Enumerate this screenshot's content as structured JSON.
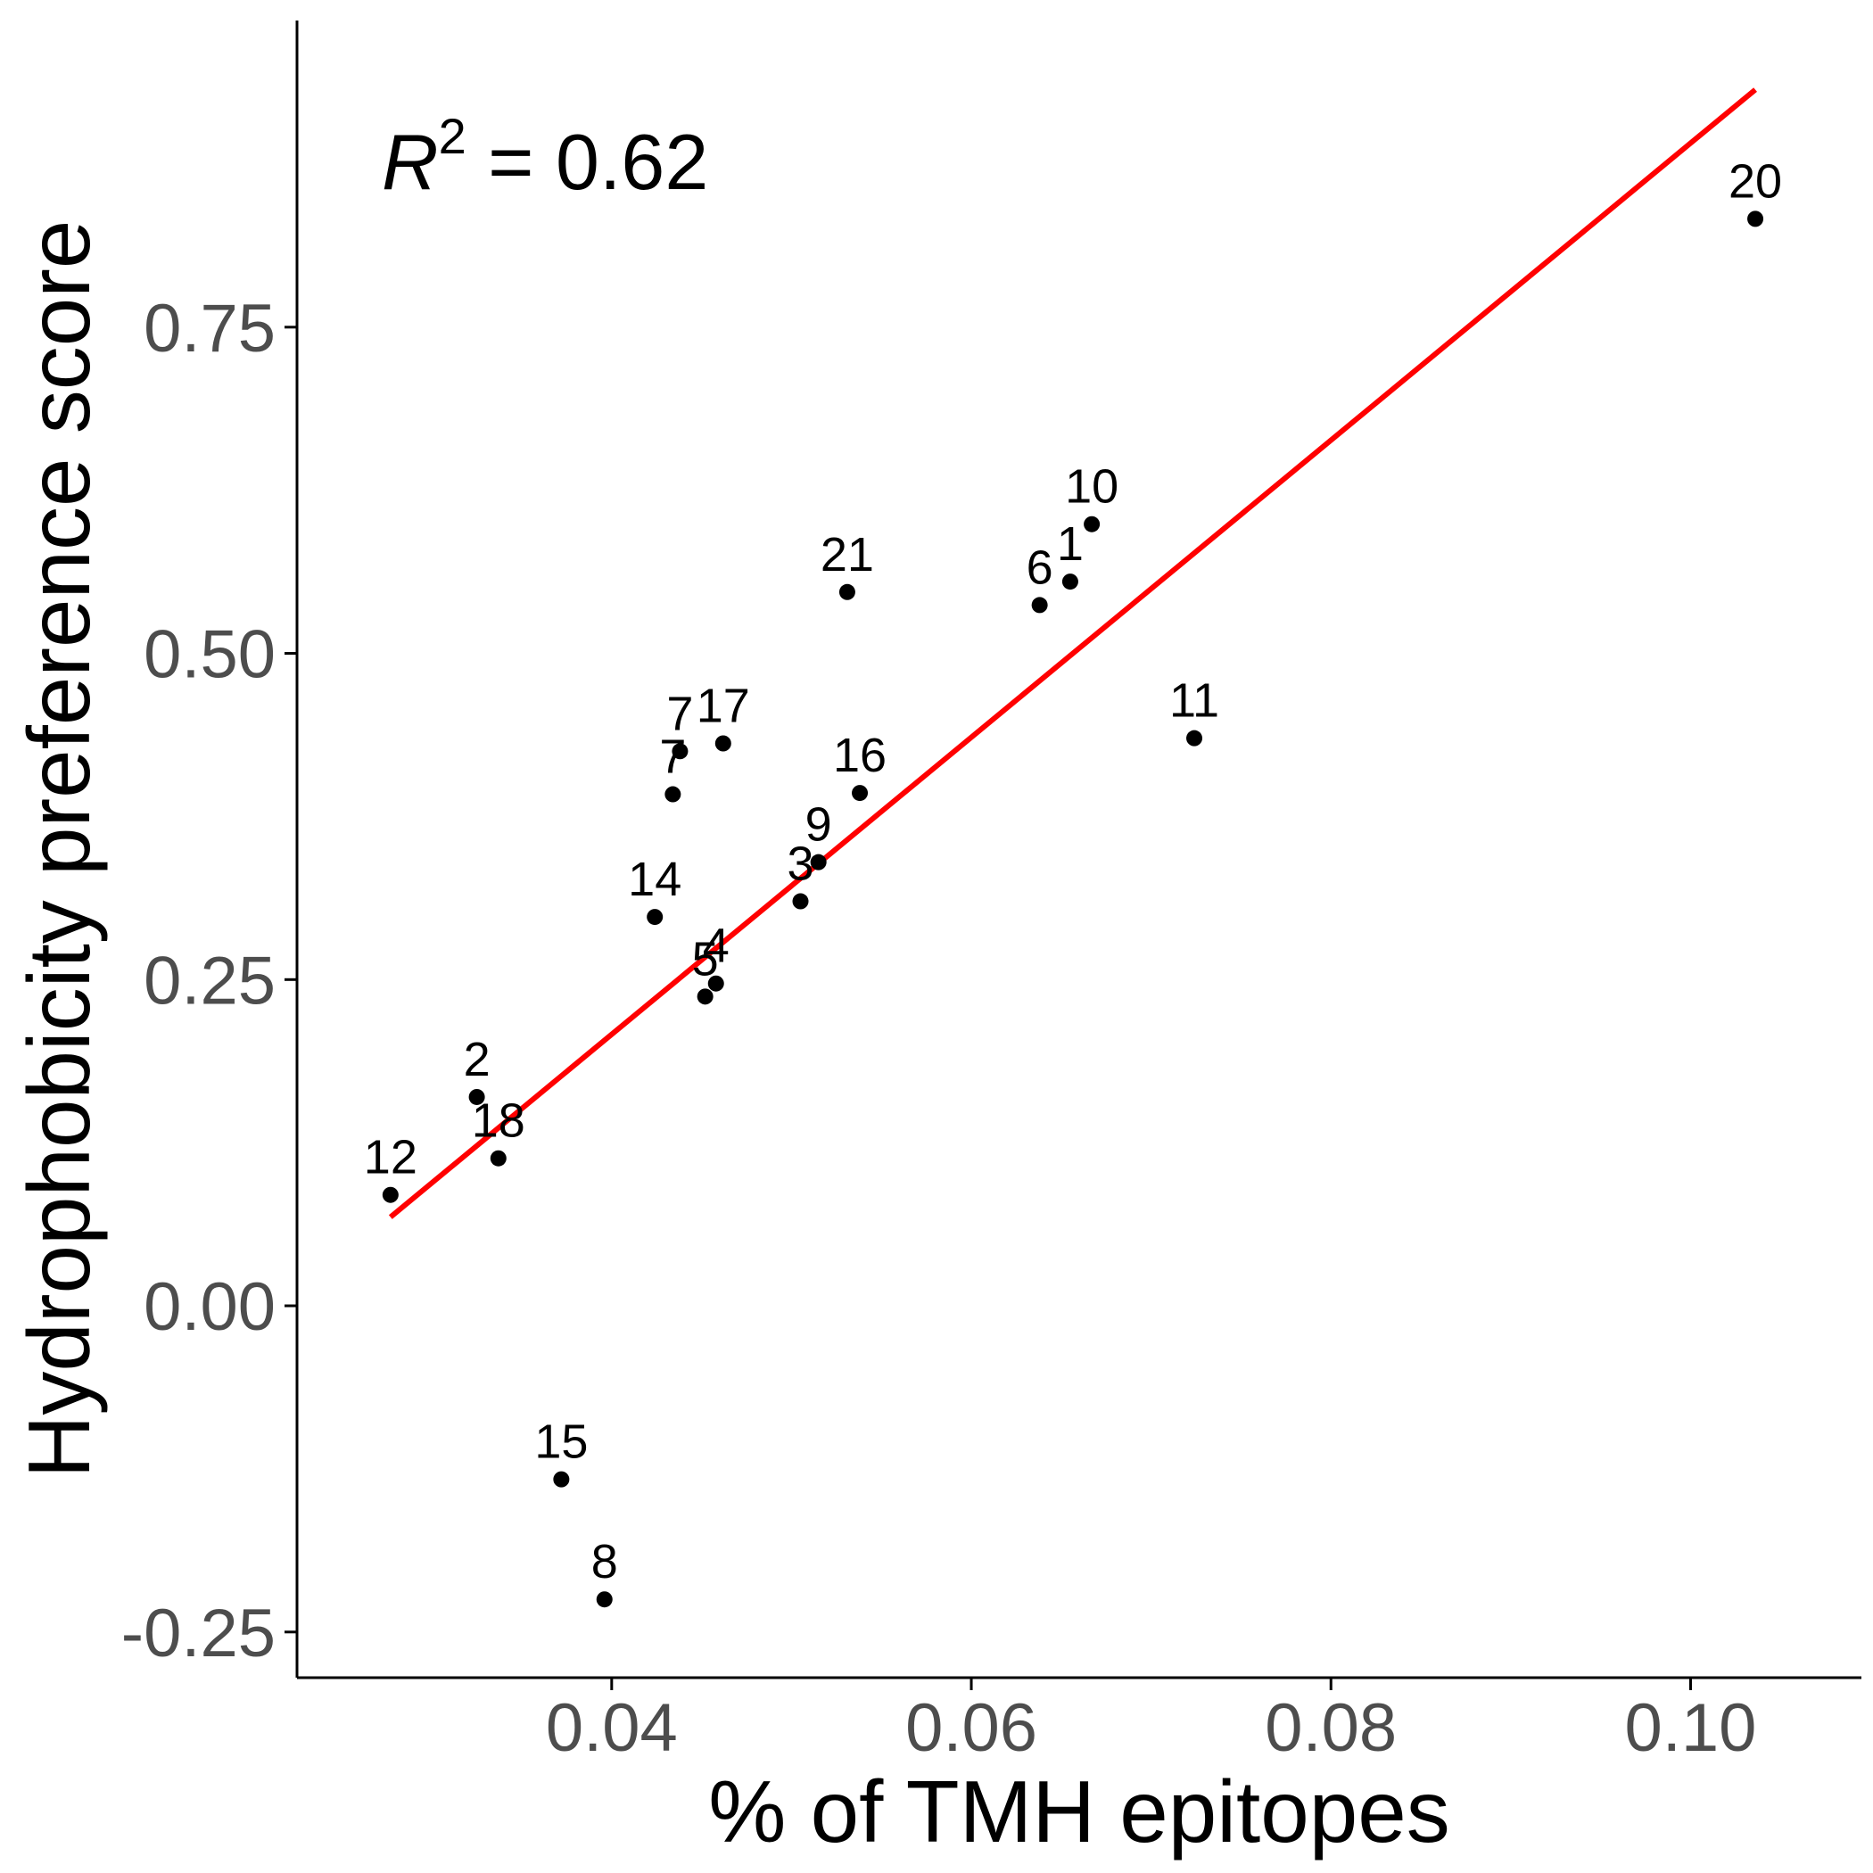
{
  "chart_data": {
    "type": "scatter",
    "xlabel": "% of TMH epitopes",
    "ylabel": "Hydrophobicity preference score",
    "xlim": [
      0.0225,
      0.1095
    ],
    "ylim": [
      -0.285,
      0.985
    ],
    "x_ticks": [
      0.04,
      0.06,
      0.08,
      0.1
    ],
    "x_tick_labels": [
      "0.04",
      "0.06",
      "0.08",
      "0.10"
    ],
    "y_ticks": [
      -0.25,
      0.0,
      0.25,
      0.5,
      0.75
    ],
    "y_tick_labels": [
      "-0.25",
      "0.00",
      "0.25",
      "0.50",
      "0.75"
    ],
    "grid": false,
    "annotation": {
      "r_symbol": "R",
      "superscript": "2",
      "text": " = 0.62"
    },
    "fit_line": {
      "color": "#ff0000",
      "x": [
        0.0277,
        0.1036
      ],
      "y": [
        0.068,
        0.932
      ]
    },
    "point_color": "#000000",
    "points": [
      {
        "label": "1",
        "x": 0.0655,
        "y": 0.555
      },
      {
        "label": "2",
        "x": 0.0325,
        "y": 0.16
      },
      {
        "label": "3",
        "x": 0.0505,
        "y": 0.31
      },
      {
        "label": "4",
        "x": 0.0458,
        "y": 0.247
      },
      {
        "label": "5",
        "x": 0.0452,
        "y": 0.237
      },
      {
        "label": "6",
        "x": 0.0638,
        "y": 0.537
      },
      {
        "label": "7",
        "x": 0.0438,
        "y": 0.425
      },
      {
        "label": "7",
        "x": 0.0434,
        "y": 0.392
      },
      {
        "label": "8",
        "x": 0.0396,
        "y": -0.225
      },
      {
        "label": "9",
        "x": 0.0515,
        "y": 0.34
      },
      {
        "label": "10",
        "x": 0.0667,
        "y": 0.599
      },
      {
        "label": "11",
        "x": 0.0724,
        "y": 0.435
      },
      {
        "label": "12",
        "x": 0.0277,
        "y": 0.085
      },
      {
        "label": "14",
        "x": 0.0424,
        "y": 0.298
      },
      {
        "label": "15",
        "x": 0.0372,
        "y": -0.133
      },
      {
        "label": "16",
        "x": 0.0538,
        "y": 0.393
      },
      {
        "label": "17",
        "x": 0.0462,
        "y": 0.431
      },
      {
        "label": "18",
        "x": 0.0337,
        "y": 0.113
      },
      {
        "label": "20",
        "x": 0.1036,
        "y": 0.833
      },
      {
        "label": "21",
        "x": 0.0531,
        "y": 0.547
      }
    ]
  }
}
